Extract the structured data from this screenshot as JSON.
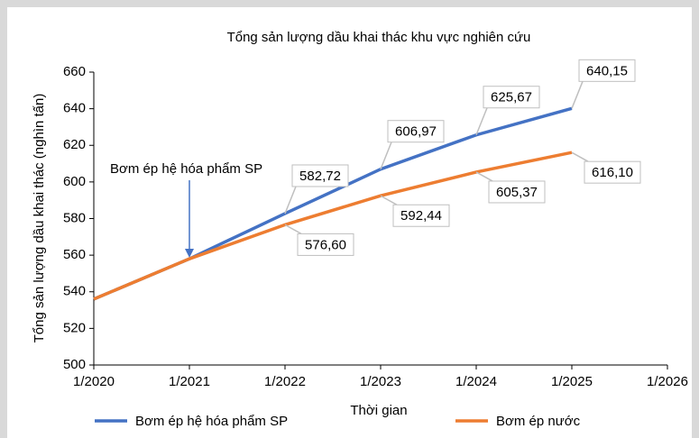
{
  "chart_data": {
    "type": "line",
    "title": "Tổng sản lượng dầu khai thác khu vực nghiên cứu",
    "x_label": "Thời gian",
    "y_label": "Tổng sản lượng dầu khai thác (nghìn tấn)",
    "annotation": "Bơm ép hệ hóa phẩm SP",
    "categories": [
      "1/2020",
      "1/2021",
      "1/2022",
      "1/2023",
      "1/2024",
      "1/2025",
      "1/2026"
    ],
    "series": [
      {
        "name": "Bơm ép hệ hóa phẩm SP",
        "color": "#4472c4",
        "values": [
          536,
          558,
          582.72,
          606.97,
          625.67,
          640.15,
          null
        ],
        "value_labels": [
          null,
          null,
          "582,72",
          "606,97",
          "625,67",
          "640,15",
          null
        ]
      },
      {
        "name": "Bơm ép nước",
        "color": "#ed7d31",
        "values": [
          536,
          558,
          576.6,
          592.44,
          605.37,
          616.1,
          null
        ],
        "value_labels": [
          null,
          null,
          "576,60",
          "592,44",
          "605,37",
          "616,10",
          null
        ]
      }
    ],
    "ylim": [
      500,
      660
    ],
    "yticks": [
      500,
      520,
      540,
      560,
      580,
      600,
      620,
      640,
      660
    ]
  }
}
